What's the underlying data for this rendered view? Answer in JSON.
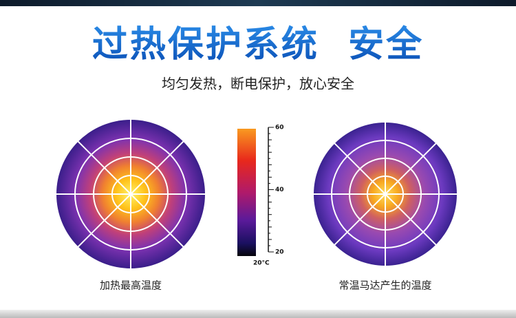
{
  "header": {
    "title": "过热保护系统  安全",
    "subtitle": "均匀发热，断电保护，放心安全"
  },
  "colorbar": {
    "ticks": [
      "60",
      "40",
      "20"
    ],
    "unit_label": "20°C"
  },
  "captions": {
    "left": "加热最高温度",
    "right": "常温马达产生的温度"
  }
}
